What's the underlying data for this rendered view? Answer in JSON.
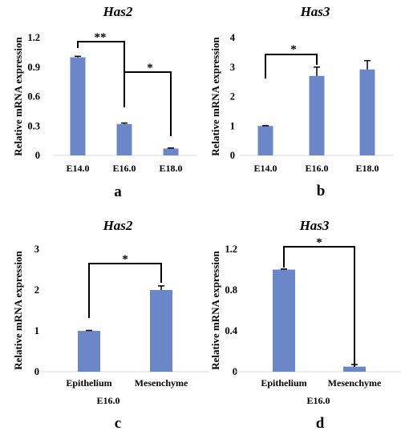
{
  "chart_data": [
    {
      "type": "bar",
      "panel": "a",
      "title": "Has2",
      "ylabel": "Relative mRNA expression",
      "xlabel": "",
      "categories": [
        "E14.0",
        "E16.0",
        "E18.0"
      ],
      "values": [
        1.0,
        0.32,
        0.07
      ],
      "errors": [
        0.01,
        0.01,
        0.005
      ],
      "ylim": [
        0,
        1.2
      ],
      "yticks": [
        "0",
        "0.3",
        "0.6",
        "0.9",
        "1.2"
      ],
      "significance": [
        {
          "from": 0,
          "to": 1,
          "label": "**"
        },
        {
          "from": 1,
          "to": 2,
          "label": "*"
        }
      ],
      "bar_color": "#6B87C9",
      "grid": false
    },
    {
      "type": "bar",
      "panel": "b",
      "title": "Has3",
      "ylabel": "Relative mRNA expression",
      "xlabel": "",
      "categories": [
        "E14.0",
        "E16.0",
        "E18.0"
      ],
      "values": [
        1.0,
        2.7,
        2.92
      ],
      "errors": [
        0.01,
        0.3,
        0.3
      ],
      "ylim": [
        0,
        4
      ],
      "yticks": [
        "0",
        "1",
        "2",
        "3",
        "4"
      ],
      "significance": [
        {
          "from": 0,
          "to": 1,
          "label": "*"
        }
      ],
      "bar_color": "#6B87C9",
      "grid": false
    },
    {
      "type": "bar",
      "panel": "c",
      "title": "Has2",
      "ylabel": "Relative mRNA expression",
      "xlabel": "E16.0",
      "categories": [
        "Epithelium",
        "Mesenchyme"
      ],
      "values": [
        1.0,
        2.0
      ],
      "errors": [
        0.01,
        0.1
      ],
      "ylim": [
        0,
        3
      ],
      "yticks": [
        "0",
        "1",
        "2",
        "3"
      ],
      "significance": [
        {
          "from": 0,
          "to": 1,
          "label": "*"
        }
      ],
      "bar_color": "#6B87C9",
      "grid": false
    },
    {
      "type": "bar",
      "panel": "d",
      "title": "Has3",
      "ylabel": "Relative mRNA expression",
      "xlabel": "E16.0",
      "categories": [
        "Epithelium",
        "Mesenchyme"
      ],
      "values": [
        1.0,
        0.05
      ],
      "errors": [
        0.005,
        0.02
      ],
      "ylim": [
        0,
        1.2
      ],
      "yticks": [
        "0",
        "0.4",
        "0.8",
        "1.2"
      ],
      "significance": [
        {
          "from": 0,
          "to": 1,
          "label": "*"
        }
      ],
      "bar_color": "#6B87C9",
      "grid": false
    }
  ]
}
